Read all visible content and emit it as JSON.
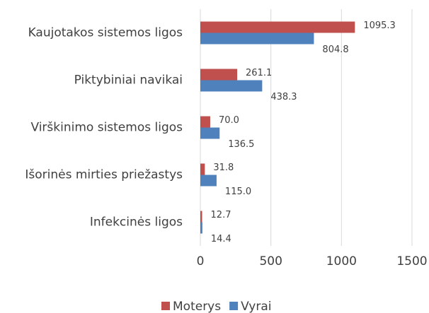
{
  "chart_data": {
    "type": "bar",
    "orientation": "horizontal",
    "categories": [
      "Kaujotakos sistemos ligos",
      "Piktybiniai navikai",
      "Virškinimo sistemos ligos",
      "Išorinės mirties priežastys",
      "Infekcinės ligos"
    ],
    "series": [
      {
        "name": "Moterys",
        "color": "#c0504d",
        "values": [
          1095.3,
          261.1,
          70.0,
          31.8,
          12.7
        ],
        "value_labels": [
          "1095.3",
          "261.1",
          "70.0",
          "31.8",
          "12.7"
        ]
      },
      {
        "name": "Vyrai",
        "color": "#4f81bd",
        "values": [
          804.8,
          438.3,
          136.5,
          115.0,
          14.4
        ],
        "value_labels": [
          "804.8",
          "438.3",
          "136.5",
          "115.0",
          "14.4"
        ]
      }
    ],
    "xlim": [
      0,
      1500
    ],
    "xticks": [
      0,
      500,
      1000,
      1500
    ],
    "grid": true,
    "legend": "bottom"
  }
}
